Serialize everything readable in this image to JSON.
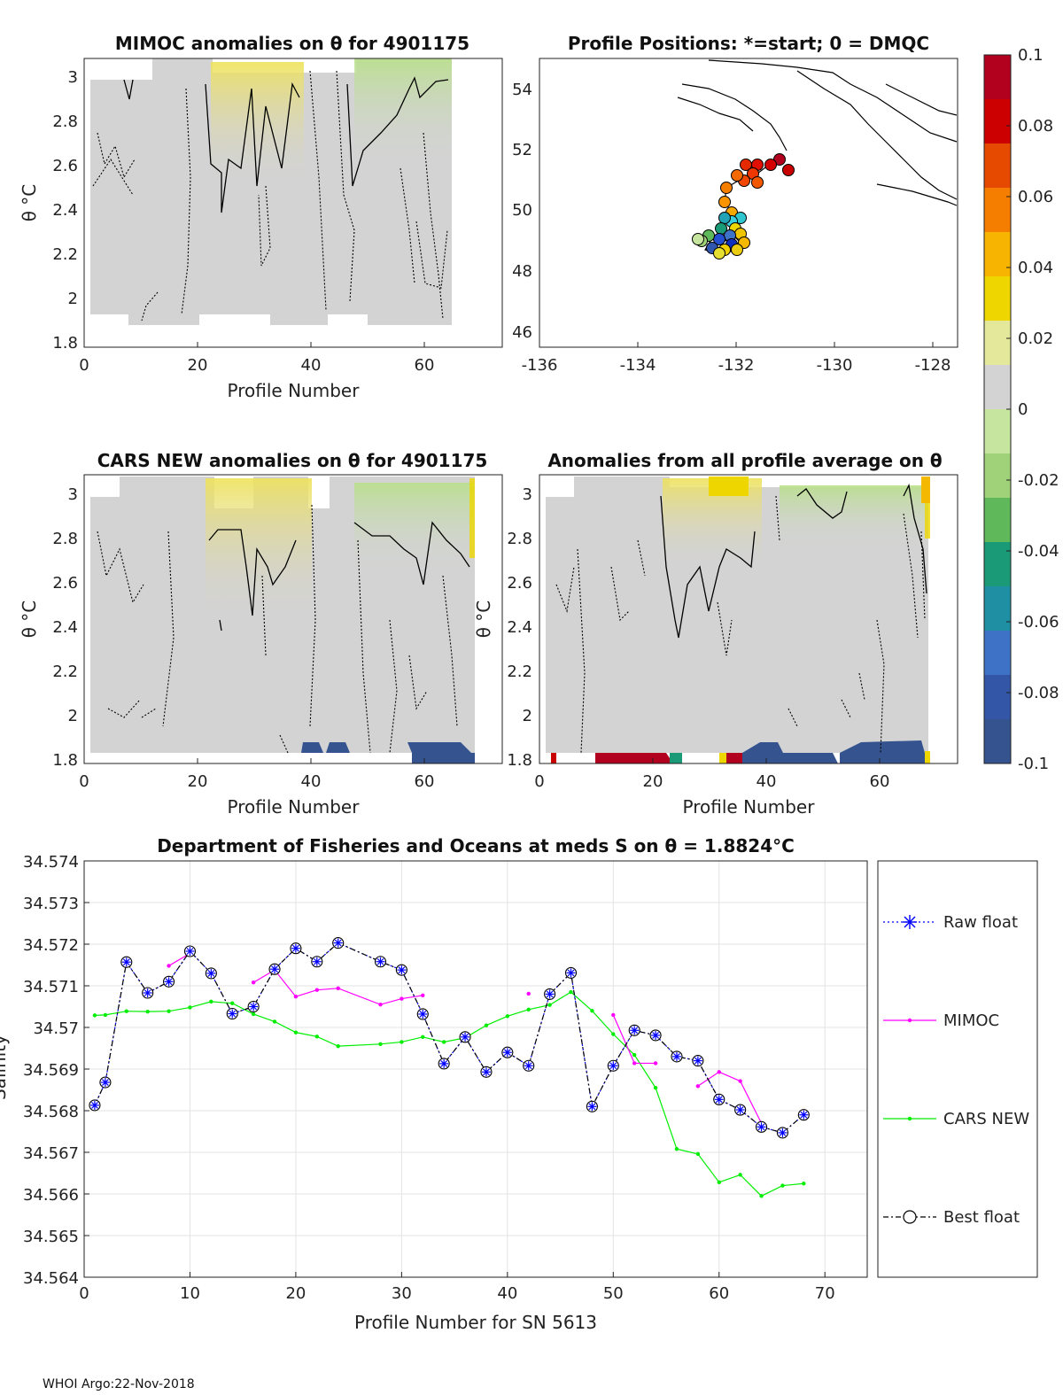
{
  "footer": "WHOI Argo:22-Nov-2018",
  "colorbar": {
    "ticks": [
      "0.1",
      "0.08",
      "0.06",
      "0.04",
      "0.02",
      "0",
      "-0.02",
      "-0.04",
      "-0.06",
      "-0.08",
      "-0.1"
    ],
    "colors": [
      "#b2001f",
      "#cc0000",
      "#e64a00",
      "#f57e00",
      "#f7b400",
      "#eed700",
      "#e3e89a",
      "#d3d3d3",
      "#c6e69f",
      "#a0d27a",
      "#5fb85a",
      "#1a9a77",
      "#1f8fa3",
      "#3d72c6",
      "#3357a6",
      "#34538f"
    ]
  },
  "panels": {
    "mimoc": {
      "title": "MIMOC anomalies on θ  for 4901175",
      "ylabel": "θ °C",
      "xlabel": "Profile Number",
      "xticks": [
        "0",
        "20",
        "40",
        "60"
      ],
      "yticks": [
        "3",
        "2.8",
        "2.6",
        "2.4",
        "2.2",
        "2",
        "1.8"
      ]
    },
    "positions": {
      "title": "Profile Positions: *=start; 0 = DMQC",
      "xticks": [
        "-136",
        "-134",
        "-132",
        "-130",
        "-128"
      ],
      "yticks": [
        "54",
        "52",
        "50",
        "48",
        "46"
      ]
    },
    "cars": {
      "title": "CARS NEW anomalies on θ for 4901175",
      "ylabel": "θ °C",
      "xlabel": "Profile Number",
      "xticks": [
        "0",
        "20",
        "40",
        "60"
      ],
      "yticks": [
        "3",
        "2.8",
        "2.6",
        "2.4",
        "2.2",
        "2",
        "1.8"
      ]
    },
    "avg": {
      "title": "Anomalies from all profile average on θ",
      "ylabel": "θ °C",
      "xlabel": "Profile Number",
      "xticks": [
        "0",
        "20",
        "40",
        "60"
      ],
      "yticks": [
        "3",
        "2.8",
        "2.6",
        "2.4",
        "2.2",
        "2",
        "1.8"
      ]
    }
  },
  "chart_data": {
    "type": "line",
    "title": "Department of Fisheries and Oceans at meds S on θ = 1.8824°C",
    "xlabel": "Profile Number for SN 5613",
    "ylabel": "Salinity",
    "xlim": [
      0,
      74
    ],
    "ylim": [
      34.564,
      34.574
    ],
    "xticks": [
      "0",
      "10",
      "20",
      "30",
      "40",
      "50",
      "60",
      "70"
    ],
    "yticks": [
      "34.564",
      "34.565",
      "34.566",
      "34.567",
      "34.568",
      "34.569",
      "34.57",
      "34.571",
      "34.572",
      "34.573",
      "34.574"
    ],
    "grid": true,
    "legend": "right",
    "series": [
      {
        "name": "Raw float",
        "color": "#0000ff",
        "x": [
          1,
          2,
          4,
          6,
          8,
          10,
          12,
          14,
          16,
          18,
          20,
          22,
          24,
          28,
          30,
          32,
          34,
          36,
          38,
          40,
          42,
          44,
          46,
          48,
          50,
          52,
          54,
          56,
          58,
          60,
          62,
          64,
          66,
          68
        ],
        "y": [
          34.56813,
          34.56868,
          34.57157,
          34.57083,
          34.5711,
          34.57183,
          34.5713,
          34.57033,
          34.5705,
          34.5714,
          34.5719,
          34.57158,
          34.57203,
          34.57158,
          34.57138,
          34.57032,
          34.56913,
          34.56977,
          34.56893,
          34.5694,
          34.56908,
          34.5708,
          34.57131,
          34.5681,
          34.56908,
          34.56993,
          34.56981,
          34.5693,
          34.5692,
          34.56827,
          34.56802,
          34.56761,
          34.56747,
          34.5679
        ]
      },
      {
        "name": "MIMOC",
        "color": "#ff00ff",
        "x": [
          8,
          10,
          null,
          16,
          18,
          20,
          22,
          24,
          28,
          30,
          32,
          null,
          42,
          null,
          50,
          52,
          54,
          null,
          58,
          60,
          62,
          64
        ],
        "y": [
          34.57148,
          34.57178,
          null,
          34.57108,
          34.57138,
          34.57074,
          34.5709,
          34.57094,
          34.57055,
          34.57069,
          34.57077,
          null,
          34.57081,
          null,
          34.5703,
          34.56914,
          34.56914,
          null,
          34.56859,
          34.56893,
          34.56871,
          34.5677
        ]
      },
      {
        "name": "CARS NEW",
        "color": "#00ee00",
        "x": [
          1,
          2,
          4,
          6,
          8,
          10,
          12,
          14,
          16,
          18,
          20,
          22,
          24,
          28,
          30,
          32,
          34,
          36,
          38,
          40,
          42,
          44,
          46,
          48,
          50,
          52,
          54,
          56,
          58,
          60,
          62,
          64,
          66,
          68
        ],
        "y": [
          34.57029,
          34.5703,
          34.57039,
          34.57038,
          34.57039,
          34.57048,
          34.57062,
          34.57058,
          34.57032,
          34.57014,
          34.56988,
          34.56978,
          34.56955,
          34.5696,
          34.56965,
          34.56977,
          34.56965,
          34.56975,
          34.57005,
          34.57027,
          34.57043,
          34.57054,
          34.57085,
          34.5704,
          34.56984,
          34.56934,
          34.56855,
          34.56708,
          34.56696,
          34.56628,
          34.56646,
          34.56595,
          34.5662,
          34.56625
        ]
      },
      {
        "name": "Best float",
        "color": "#000000",
        "x": [
          1,
          2,
          4,
          6,
          8,
          10,
          12,
          14,
          16,
          18,
          20,
          22,
          24,
          28,
          30,
          32,
          34,
          36,
          38,
          40,
          42,
          44,
          46,
          48,
          50,
          52,
          54,
          56,
          58,
          60,
          62,
          64,
          66,
          68
        ],
        "y": [
          34.56813,
          34.56868,
          34.57157,
          34.57083,
          34.5711,
          34.57183,
          34.5713,
          34.57033,
          34.5705,
          34.5714,
          34.5719,
          34.57158,
          34.57203,
          34.57158,
          34.57138,
          34.57032,
          34.56913,
          34.56977,
          34.56893,
          34.5694,
          34.56908,
          34.5708,
          34.57131,
          34.5681,
          34.56908,
          34.56993,
          34.56981,
          34.5693,
          34.5692,
          34.56827,
          34.56802,
          34.56761,
          34.56747,
          34.5679
        ]
      }
    ]
  }
}
